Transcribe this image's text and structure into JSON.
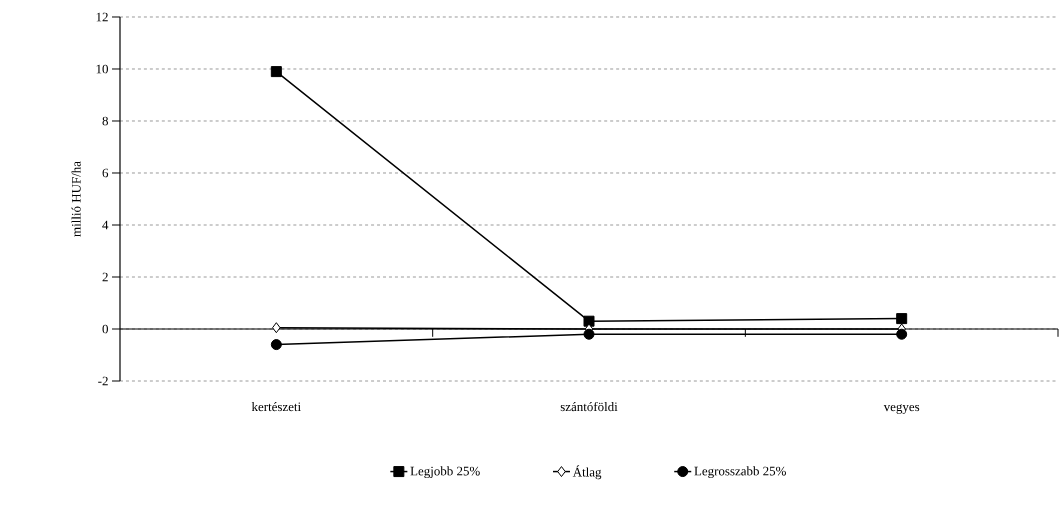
{
  "chart_data": {
    "type": "line",
    "ylabel": "millió HUF/ha",
    "categories": [
      "kertészeti",
      "szántóföldi",
      "vegyes"
    ],
    "series": [
      {
        "name": "Legjobb 25%",
        "color": "#000000",
        "marker": "square",
        "values": [
          9.9,
          0.3,
          0.4
        ]
      },
      {
        "name": "Átlag",
        "color": "#000000",
        "marker": "diamond",
        "values": [
          0.05,
          0.0,
          0.0
        ]
      },
      {
        "name": "Legrosszabb 25%",
        "color": "#000000",
        "marker": "circle",
        "values": [
          -0.6,
          -0.2,
          -0.2
        ]
      }
    ],
    "ylim": [
      -2,
      12
    ],
    "yticks": [
      -2,
      0,
      2,
      4,
      6,
      8,
      10,
      12
    ],
    "grid": "y",
    "legend": "bottom",
    "line_style": "solid"
  }
}
